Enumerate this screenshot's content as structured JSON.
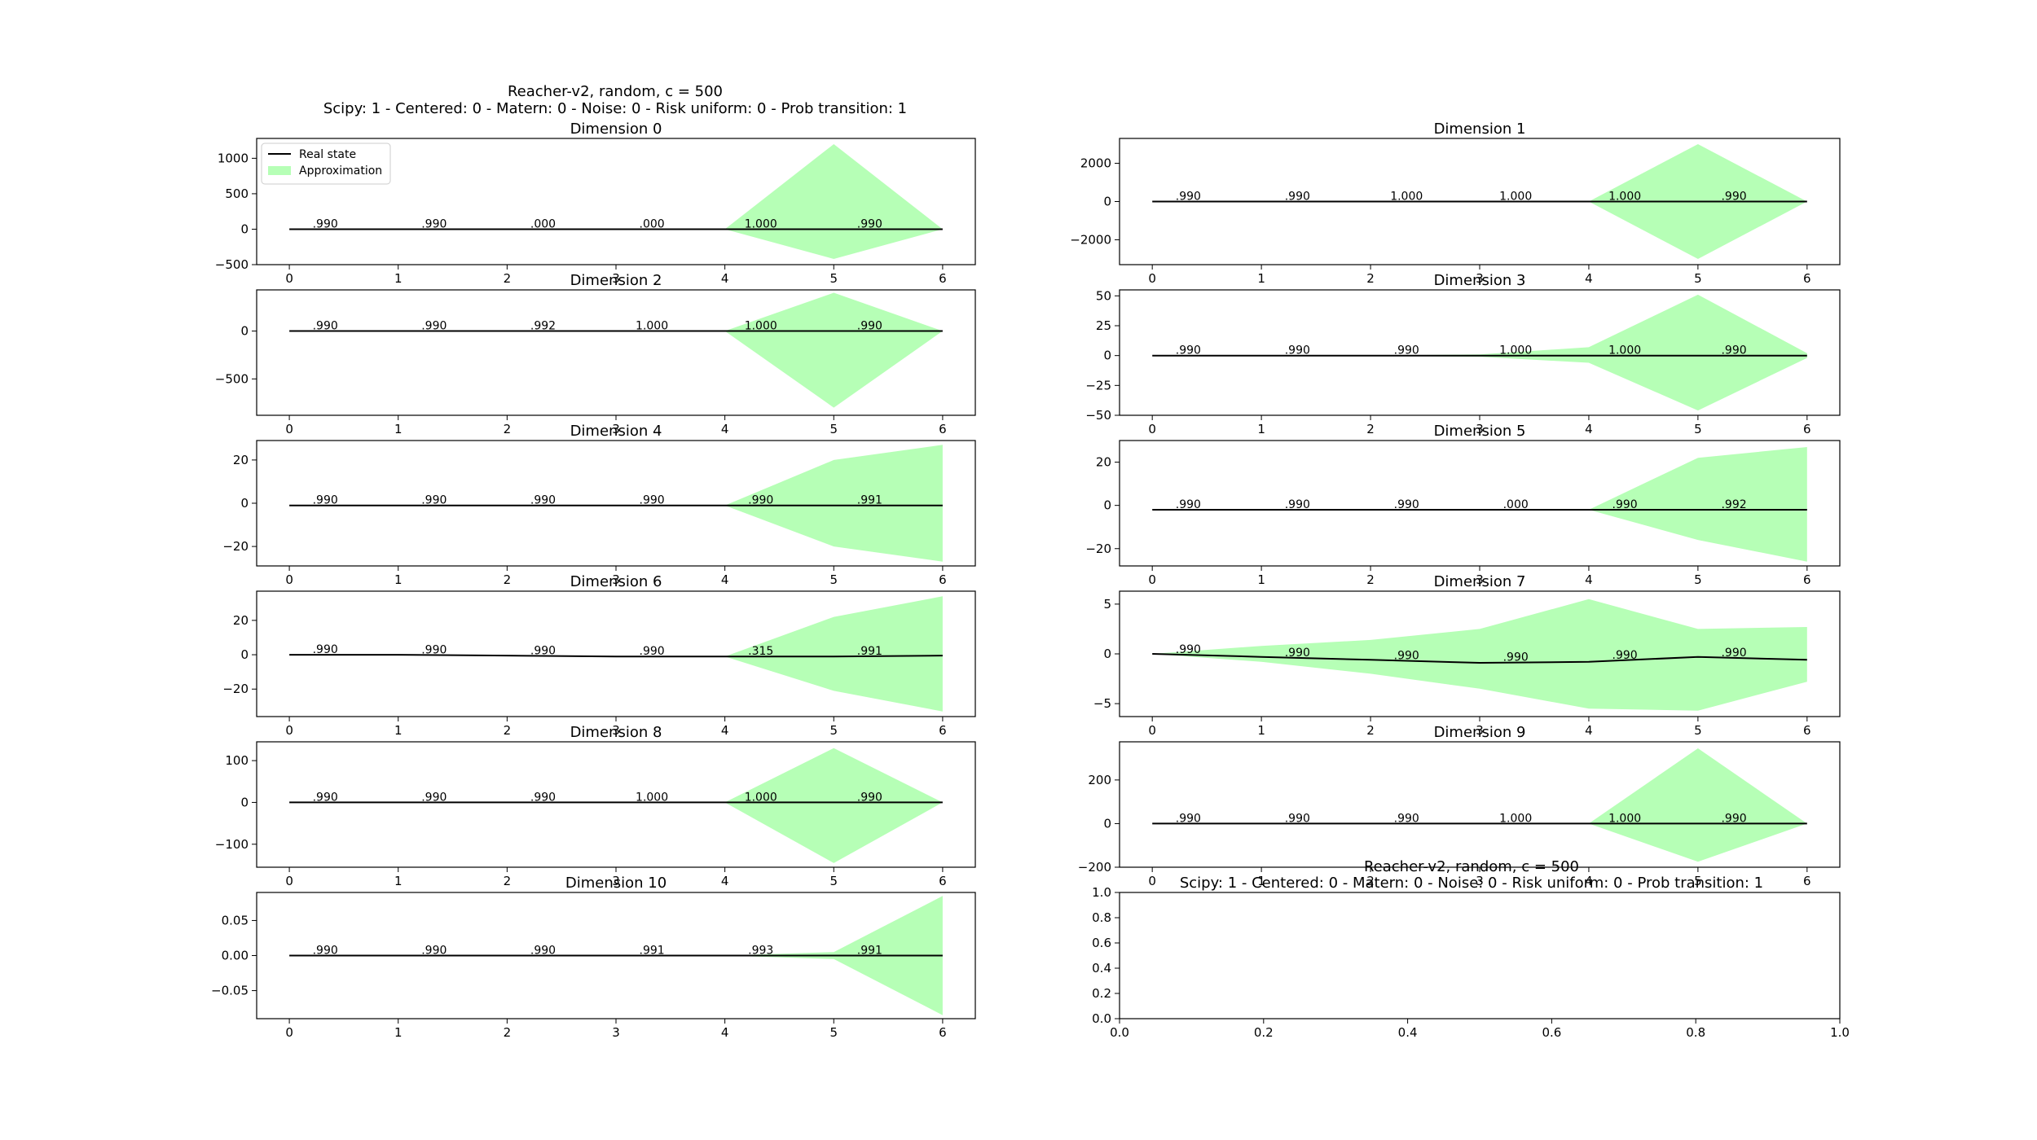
{
  "figure": {
    "title": "Reacher-v2, random, c = 500",
    "subtitle": "Scipy: 1 - Centered: 0 - Matern: 0 - Noise: 0 - Risk uniform: 0 - Prob transition: 1",
    "empty_panel_title": "Scipy: 1 - Centered: 0 - Matern: 0 - Noise: 0 - Risk uniform: 0 - Prob transition: 1",
    "empty_panel_title_behind": "Reacher-v2, random, c = 500",
    "legend": {
      "real": "Real state",
      "approx": "Approximation"
    }
  },
  "colors": {
    "real": "#000000",
    "approx": "#b6ffb6"
  },
  "chart_data": [
    {
      "type": "area",
      "title": "Dimension 0",
      "x": [
        0,
        1,
        2,
        3,
        4,
        5,
        6
      ],
      "real": [
        0,
        0,
        0,
        0,
        0,
        0,
        0
      ],
      "lower": [
        0,
        0,
        0,
        0,
        0,
        -420,
        0
      ],
      "upper": [
        0,
        0,
        0,
        0,
        0,
        1200,
        0
      ],
      "labels": [
        ".990",
        ".990",
        ".000",
        ".000",
        "1.000",
        ".990"
      ],
      "ylim": [
        -500,
        1280
      ],
      "yticks": [
        -500,
        0,
        500,
        1000
      ],
      "ytick_labels": [
        "−500",
        "0",
        "500",
        "1000"
      ]
    },
    {
      "type": "area",
      "title": "Dimension 1",
      "x": [
        0,
        1,
        2,
        3,
        4,
        5,
        6
      ],
      "real": [
        0,
        0,
        0,
        0,
        0,
        0,
        0
      ],
      "lower": [
        0,
        0,
        0,
        0,
        0,
        -3000,
        0
      ],
      "upper": [
        0,
        0,
        0,
        0,
        0,
        3000,
        0
      ],
      "labels": [
        ".990",
        ".990",
        "1.000",
        "1.000",
        "1.000",
        ".990"
      ],
      "ylim": [
        -3300,
        3300
      ],
      "yticks": [
        -2000,
        0,
        2000
      ],
      "ytick_labels": [
        "−2000",
        "0",
        "2000"
      ]
    },
    {
      "type": "area",
      "title": "Dimension 2",
      "x": [
        0,
        1,
        2,
        3,
        4,
        5,
        6
      ],
      "real": [
        0,
        0,
        0,
        0,
        0,
        0,
        0
      ],
      "lower": [
        0,
        0,
        0,
        0,
        0,
        -800,
        0
      ],
      "upper": [
        0,
        0,
        0,
        0,
        0,
        400,
        0
      ],
      "labels": [
        ".990",
        ".990",
        ".992",
        "1.000",
        "1.000",
        ".990"
      ],
      "ylim": [
        -880,
        430
      ],
      "yticks": [
        -500,
        0
      ],
      "ytick_labels": [
        "−500",
        "0"
      ]
    },
    {
      "type": "area",
      "title": "Dimension 3",
      "x": [
        0,
        1,
        2,
        3,
        4,
        5,
        6
      ],
      "real": [
        0,
        0,
        0,
        0,
        0,
        0,
        0
      ],
      "lower": [
        0,
        0,
        0,
        -1,
        -6,
        -46,
        -2
      ],
      "upper": [
        0,
        0,
        0,
        1,
        7,
        51,
        2
      ],
      "labels": [
        ".990",
        ".990",
        ".990",
        "1.000",
        "1.000",
        ".990"
      ],
      "ylim": [
        -50,
        55
      ],
      "yticks": [
        -50,
        -25,
        0,
        25,
        50
      ],
      "ytick_labels": [
        "−50",
        "−25",
        "0",
        "25",
        "50"
      ]
    },
    {
      "type": "area",
      "title": "Dimension 4",
      "x": [
        0,
        1,
        2,
        3,
        4,
        5,
        6
      ],
      "real": [
        -1,
        -1,
        -1,
        -1,
        -1,
        -1,
        -1
      ],
      "lower": [
        -1,
        -1,
        -1,
        -1,
        -1,
        -20,
        -27
      ],
      "upper": [
        -1,
        -1,
        -1,
        -1,
        -1,
        20,
        27
      ],
      "labels": [
        ".990",
        ".990",
        ".990",
        ".990",
        ".990",
        ".991"
      ],
      "ylim": [
        -29,
        29
      ],
      "yticks": [
        -20,
        0,
        20
      ],
      "ytick_labels": [
        "−20",
        "0",
        "20"
      ]
    },
    {
      "type": "area",
      "title": "Dimension 5",
      "x": [
        0,
        1,
        2,
        3,
        4,
        5,
        6
      ],
      "real": [
        -2,
        -2,
        -2,
        -2,
        -2,
        -2,
        -2
      ],
      "lower": [
        -2,
        -2,
        -2,
        -2,
        -2,
        -16,
        -26
      ],
      "upper": [
        -2,
        -2,
        -2,
        -2,
        -2,
        22,
        27
      ],
      "labels": [
        ".990",
        ".990",
        ".990",
        ".000",
        ".990",
        ".992"
      ],
      "ylim": [
        -28,
        30
      ],
      "yticks": [
        -20,
        0,
        20
      ],
      "ytick_labels": [
        "−20",
        "0",
        "20"
      ]
    },
    {
      "type": "area",
      "title": "Dimension 6",
      "x": [
        0,
        1,
        2,
        3,
        4,
        5,
        6
      ],
      "real": [
        0,
        0,
        -0.5,
        -1,
        -1,
        -1,
        -0.5
      ],
      "lower": [
        0,
        0,
        -0.5,
        -1,
        -1,
        -21,
        -33
      ],
      "upper": [
        0,
        0,
        -0.5,
        -1,
        -1,
        22,
        34
      ],
      "labels": [
        ".990",
        ".990",
        ".990",
        ".990",
        ".315",
        ".991"
      ],
      "ylim": [
        -36,
        37
      ],
      "yticks": [
        -20,
        0,
        20
      ],
      "ytick_labels": [
        "−20",
        "0",
        "20"
      ]
    },
    {
      "type": "area",
      "title": "Dimension 7",
      "x": [
        0,
        1,
        2,
        3,
        4,
        5,
        6
      ],
      "real": [
        0,
        -0.3,
        -0.6,
        -0.9,
        -0.8,
        -0.3,
        -0.6
      ],
      "lower": [
        0,
        -0.8,
        -2,
        -3.5,
        -5.5,
        -5.7,
        -2.8
      ],
      "upper": [
        0,
        0.8,
        1.4,
        2.5,
        5.5,
        2.5,
        2.7
      ],
      "labels": [
        ".990",
        ".990",
        ".990",
        ".990",
        ".990",
        ".990"
      ],
      "ylim": [
        -6.3,
        6.3
      ],
      "yticks": [
        -5,
        0,
        5
      ],
      "ytick_labels": [
        "−5",
        "0",
        "5"
      ]
    },
    {
      "type": "area",
      "title": "Dimension 8",
      "x": [
        0,
        1,
        2,
        3,
        4,
        5,
        6
      ],
      "real": [
        0,
        0,
        0,
        0,
        0,
        0,
        0
      ],
      "lower": [
        0,
        0,
        0,
        0,
        0,
        -145,
        0
      ],
      "upper": [
        0,
        0,
        0,
        0,
        0,
        130,
        0
      ],
      "labels": [
        ".990",
        ".990",
        ".990",
        "1.000",
        "1.000",
        ".990"
      ],
      "ylim": [
        -155,
        145
      ],
      "yticks": [
        -100,
        0,
        100
      ],
      "ytick_labels": [
        "−100",
        "0",
        "100"
      ]
    },
    {
      "type": "area",
      "title": "Dimension 9",
      "x": [
        0,
        1,
        2,
        3,
        4,
        5,
        6
      ],
      "real": [
        0,
        0,
        0,
        0,
        0,
        0,
        0
      ],
      "lower": [
        0,
        0,
        0,
        0,
        0,
        -175,
        0
      ],
      "upper": [
        0,
        0,
        0,
        0,
        0,
        345,
        0
      ],
      "labels": [
        ".990",
        ".990",
        ".990",
        "1.000",
        "1.000",
        ".990"
      ],
      "ylim": [
        -200,
        375
      ],
      "yticks": [
        -200,
        0,
        200
      ],
      "ytick_labels": [
        "−200",
        "0",
        "200"
      ]
    },
    {
      "type": "area",
      "title": "Dimension 10",
      "x": [
        0,
        1,
        2,
        3,
        4,
        5,
        6
      ],
      "real": [
        0,
        0,
        0,
        0,
        0,
        0,
        0
      ],
      "lower": [
        0,
        0,
        0,
        0,
        0,
        -0.005,
        -0.085
      ],
      "upper": [
        0,
        0,
        0,
        0,
        0,
        0.005,
        0.085
      ],
      "labels": [
        ".990",
        ".990",
        ".990",
        ".991",
        ".993",
        ".991"
      ],
      "ylim": [
        -0.09,
        0.09
      ],
      "yticks": [
        -0.05,
        0,
        0.05
      ],
      "ytick_labels": [
        "−0.05",
        "0.00",
        "0.05"
      ]
    },
    {
      "type": "empty",
      "title": "",
      "xlim": [
        0,
        1
      ],
      "ylim": [
        0,
        1
      ],
      "xticks": [
        0,
        0.2,
        0.4,
        0.6,
        0.8,
        1.0
      ],
      "xtick_labels": [
        "0.0",
        "0.2",
        "0.4",
        "0.6",
        "0.8",
        "1.0"
      ],
      "yticks": [
        0,
        0.2,
        0.4,
        0.6,
        0.8,
        1.0
      ],
      "ytick_labels": [
        "0.0",
        "0.2",
        "0.4",
        "0.6",
        "0.8",
        "1.0"
      ]
    }
  ]
}
